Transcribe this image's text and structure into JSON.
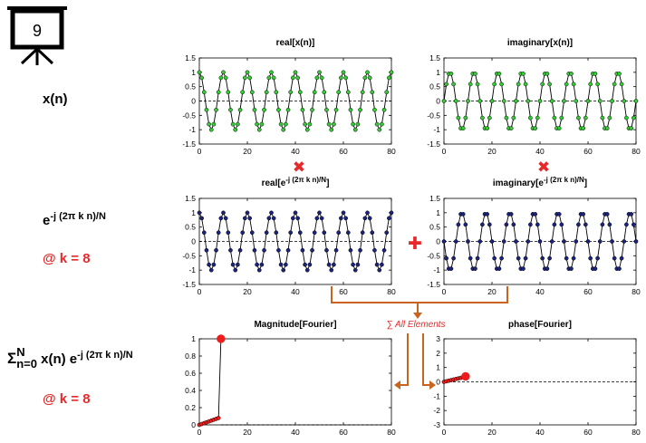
{
  "slide_number": "9",
  "labels": {
    "x_n": "x(n)",
    "kernel_base": "e",
    "kernel_exp": "-j (2π k n)/N",
    "at_k": "@ k = 8",
    "sum_symbol": "Σ",
    "sum_upper": "N",
    "sum_lower": "n=0",
    "sum_body": "x(n) e",
    "sum_exp": "-j (2π k n)/N",
    "at_k2": "@ k = 8"
  },
  "operators": {
    "multiply_symbol": "✖",
    "plus_symbol": "✚",
    "sum_elements": "∑ All Elements"
  },
  "colors": {
    "accent_red": "#e8292b",
    "green": "#33cc33",
    "navy": "#1a237e",
    "orange": "#c8641e",
    "marker_red": "#ee1c1c"
  },
  "chart_data": [
    {
      "type": "line",
      "title": "real[x(n)]",
      "title_parts": [
        "real[x(n)]",
        "",
        "",
        ""
      ],
      "xlim": [
        0,
        80
      ],
      "ylim": [
        -1.5,
        1.5
      ],
      "xticks": [
        "0",
        "20",
        "40",
        "60",
        "80"
      ],
      "yticks": [
        "1.5",
        "1",
        "0.5",
        "0",
        "-0.5",
        "-1",
        "-1.5"
      ],
      "marker_color": "#33cc33",
      "series": [
        {
          "formula": "cos(2*pi*8*n/80)",
          "n_range": [
            0,
            80
          ]
        }
      ]
    },
    {
      "type": "line",
      "title": "imaginary[x(n)]",
      "title_parts": [
        "imaginary[x(n)]",
        "",
        "",
        ""
      ],
      "xlim": [
        0,
        80
      ],
      "ylim": [
        -1.5,
        1.5
      ],
      "xticks": [
        "0",
        "20",
        "40",
        "60",
        "80"
      ],
      "yticks": [
        "1.5",
        "1",
        "0.5",
        "0",
        "-0.5",
        "-1",
        "-1.5"
      ],
      "marker_color": "#33cc33",
      "series": [
        {
          "formula": "sin(2*pi*8*n/80)",
          "n_range": [
            0,
            80
          ]
        }
      ]
    },
    {
      "type": "line",
      "title": "real[e-j (2π k n)/N]",
      "title_parts": [
        "real[e",
        "-j (2π k n)/N",
        "]",
        ""
      ],
      "xlim": [
        0,
        80
      ],
      "ylim": [
        -1.5,
        1.5
      ],
      "xticks": [
        "0",
        "20",
        "40",
        "60",
        "80"
      ],
      "yticks": [
        "1.5",
        "1",
        "0.5",
        "0",
        "-0.5",
        "-1",
        "-1.5"
      ],
      "marker_color": "#1a237e",
      "series": [
        {
          "formula": "cos(2*pi*8*n/80)",
          "n_range": [
            0,
            80
          ]
        }
      ]
    },
    {
      "type": "line",
      "title": "imaginary[e-j (2π k n)/N]",
      "title_parts": [
        "imaginary[e",
        "-j (2π k n)/N",
        "]",
        ""
      ],
      "xlim": [
        0,
        80
      ],
      "ylim": [
        -1.5,
        1.5
      ],
      "xticks": [
        "0",
        "20",
        "40",
        "60",
        "80"
      ],
      "yticks": [
        "1.5",
        "1",
        "0.5",
        "0",
        "-0.5",
        "-1",
        "-1.5"
      ],
      "marker_color": "#1a237e",
      "series": [
        {
          "formula": "-sin(2*pi*8*n/80)",
          "n_range": [
            0,
            80
          ]
        }
      ]
    },
    {
      "type": "line",
      "title": "Magnitude[Fourier]",
      "title_parts": [
        "Magnitude[Fourier]",
        "",
        "",
        ""
      ],
      "xlim": [
        0,
        80
      ],
      "ylim": [
        0,
        1
      ],
      "xticks": [
        "0",
        "20",
        "40",
        "60",
        "80"
      ],
      "yticks": [
        "1",
        "0.8",
        "0.6",
        "0.4",
        "0.2",
        "0"
      ],
      "dashed_line_after_last_point": true,
      "marker_color": "#ee1c1c",
      "series": [
        {
          "x": [
            0,
            1,
            2,
            3,
            4,
            5,
            6,
            7,
            8,
            9
          ],
          "y": [
            0,
            0.01,
            0.02,
            0.03,
            0.04,
            0.05,
            0.06,
            0.07,
            0.08,
            1.0
          ],
          "highlight_last": true
        }
      ]
    },
    {
      "type": "line",
      "title": "phase[Fourier]",
      "title_parts": [
        "phase[Fourier]",
        "",
        "",
        ""
      ],
      "xlim": [
        0,
        80
      ],
      "ylim": [
        -3,
        3
      ],
      "xticks": [
        "0",
        "20",
        "40",
        "60",
        "80"
      ],
      "yticks": [
        "3",
        "2",
        "1",
        "0",
        "-1",
        "-2",
        "-3"
      ],
      "marker_color": "#ee1c1c",
      "series": [
        {
          "x": [
            0,
            1,
            2,
            3,
            4,
            5,
            6,
            7,
            8,
            9
          ],
          "y": [
            0,
            0.04,
            0.08,
            0.12,
            0.16,
            0.2,
            0.24,
            0.28,
            0.32,
            0.38
          ],
          "highlight_last": true
        }
      ]
    }
  ]
}
